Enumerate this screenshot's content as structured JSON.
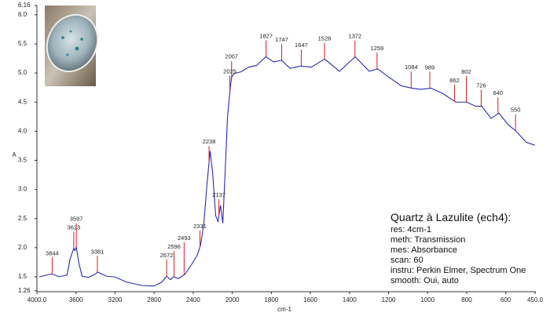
{
  "chart_data": {
    "type": "line",
    "y_label": "A",
    "x_label": "cm-1",
    "xlim": [
      4000,
      450
    ],
    "x_scale_break": 2000,
    "ylim": [
      1.26,
      6.16
    ],
    "xticks": [
      {
        "value": 4000,
        "label": "4000.0"
      },
      3600,
      3200,
      2800,
      2400,
      2000,
      1800,
      1600,
      1400,
      1200,
      1000,
      800,
      600,
      {
        "value": 450,
        "label": "450.0"
      }
    ],
    "yticks": [
      6.16,
      {
        "value": 6,
        "label": "6.0"
      },
      5.5,
      {
        "value": 5,
        "label": "5.0"
      },
      4.5,
      {
        "value": 4,
        "label": "4.0"
      },
      3.5,
      {
        "value": 3,
        "label": "3.0"
      },
      2.5,
      {
        "value": 2,
        "label": "2.0"
      },
      1.5,
      1.26
    ],
    "color": "#2a2ab8",
    "peak_color": "#d22020",
    "x": [
      3976,
      3846,
      3773,
      3692,
      3660,
      3623,
      3611,
      3597,
      3571,
      3538,
      3474,
      3409,
      3377,
      3287,
      3206,
      3085,
      2923,
      2802,
      2721,
      2672,
      2632,
      2599,
      2551,
      2486,
      2421,
      2356,
      2324,
      2291,
      2259,
      2227,
      2202,
      2170,
      2146,
      2121,
      2097,
      2073,
      2049,
      2024,
      2008,
      1992,
      1956,
      1916,
      1876,
      1828,
      1788,
      1748,
      1704,
      1648,
      1596,
      1527,
      1451,
      1371,
      1299,
      1255,
      1195,
      1135,
      1080,
      1035,
      983,
      923,
      855,
      799,
      755,
      723,
      675,
      635,
      587,
      547,
      495,
      451
    ],
    "values": [
      1.5,
      1.55,
      1.5,
      1.53,
      1.81,
      1.99,
      1.95,
      2.01,
      1.74,
      1.51,
      1.49,
      1.54,
      1.58,
      1.51,
      1.5,
      1.41,
      1.35,
      1.34,
      1.41,
      1.51,
      1.45,
      1.5,
      1.47,
      1.54,
      1.7,
      1.88,
      2.05,
      2.42,
      3.09,
      3.66,
      3.3,
      2.55,
      2.45,
      2.73,
      2.42,
      3.3,
      4.24,
      4.69,
      4.92,
      4.99,
      5.02,
      5.1,
      5.13,
      5.28,
      5.19,
      5.22,
      5.08,
      5.12,
      5.1,
      5.24,
      5.03,
      5.28,
      5.03,
      5.07,
      4.92,
      4.78,
      4.74,
      4.72,
      4.74,
      4.65,
      4.5,
      4.5,
      4.43,
      4.43,
      4.22,
      4.31,
      4.11,
      4.0,
      3.81,
      3.76
    ],
    "peaks": [
      3844,
      3623,
      3597,
      3381,
      2672,
      2596,
      2493,
      2331,
      2238,
      2137,
      2025,
      2007,
      1827,
      1747,
      1647,
      1528,
      1372,
      1259,
      1084,
      989,
      862,
      802,
      726,
      640,
      550
    ],
    "annotation_title": "Quartz à Lazulite (ech4):",
    "annotations": [
      "res: 4cm-1",
      "meth: Transmission",
      "mes: Absorbance",
      "scan: 60",
      "instru: Perkin Elmer, Spectrum One",
      "smooth: Oui, auto"
    ]
  }
}
